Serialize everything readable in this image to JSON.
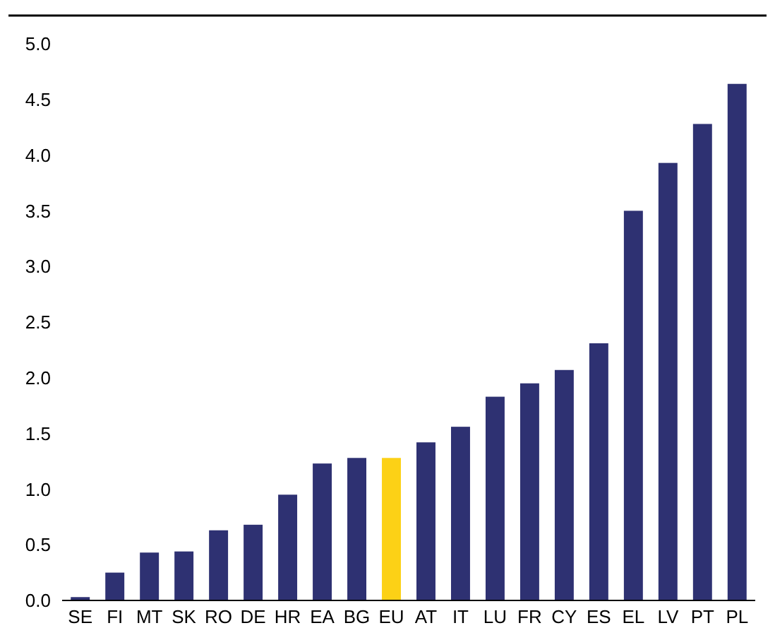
{
  "chart_data": {
    "type": "bar",
    "categories": [
      "SE",
      "FI",
      "MT",
      "SK",
      "RO",
      "DE",
      "HR",
      "EA",
      "BG",
      "EU",
      "AT",
      "IT",
      "LU",
      "FR",
      "CY",
      "ES",
      "EL",
      "LV",
      "PT",
      "PL"
    ],
    "values": [
      0.03,
      0.25,
      0.43,
      0.44,
      0.63,
      0.68,
      0.95,
      1.23,
      1.28,
      1.28,
      1.42,
      1.56,
      1.83,
      1.95,
      2.07,
      2.31,
      3.5,
      3.93,
      4.28,
      4.64
    ],
    "colors": [
      "#2e3172",
      "#2e3172",
      "#2e3172",
      "#2e3172",
      "#2e3172",
      "#2e3172",
      "#2e3172",
      "#2e3172",
      "#2e3172",
      "#fcd116",
      "#2e3172",
      "#2e3172",
      "#2e3172",
      "#2e3172",
      "#2e3172",
      "#2e3172",
      "#2e3172",
      "#2e3172",
      "#2e3172",
      "#2e3172"
    ],
    "ylim": [
      0,
      5
    ],
    "yticks": [
      {
        "value": 0,
        "label": "0.0"
      },
      {
        "value": 0.5,
        "label": "0.5"
      },
      {
        "value": 1,
        "label": "1.0"
      },
      {
        "value": 1.5,
        "label": "1.5"
      },
      {
        "value": 2,
        "label": "2.0"
      },
      {
        "value": 2.5,
        "label": "2.5"
      },
      {
        "value": 3,
        "label": "3.0"
      },
      {
        "value": 3.5,
        "label": "3.5"
      },
      {
        "value": 4,
        "label": "4.0"
      },
      {
        "value": 4.5,
        "label": "4.5"
      },
      {
        "value": 5,
        "label": "5.0"
      }
    ],
    "grid": false
  }
}
